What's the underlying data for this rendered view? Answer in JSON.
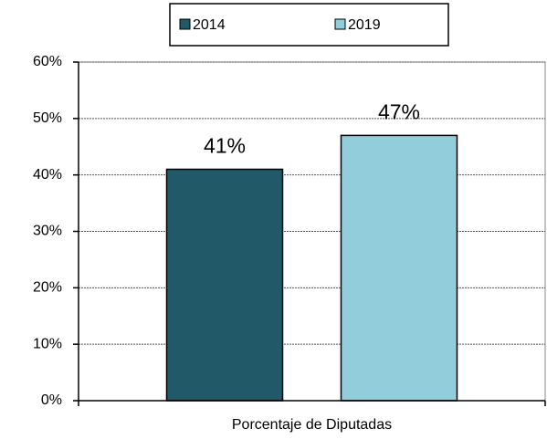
{
  "chart_data": {
    "type": "bar",
    "categories": [
      "Porcentaje de Diputadas"
    ],
    "series": [
      {
        "name": "2014",
        "color": "#215968",
        "values": [
          41
        ],
        "value_labels": [
          "41%"
        ]
      },
      {
        "name": "2019",
        "color": "#92cddc",
        "values": [
          47
        ],
        "value_labels": [
          "47%"
        ]
      }
    ],
    "ylim": [
      0,
      60
    ],
    "yticks": [
      {
        "value": 0,
        "label": "0%"
      },
      {
        "value": 10,
        "label": "10%"
      },
      {
        "value": 20,
        "label": "20%"
      },
      {
        "value": 30,
        "label": "30%"
      },
      {
        "value": 40,
        "label": "40%"
      },
      {
        "value": 50,
        "label": "50%"
      },
      {
        "value": 60,
        "label": "60%"
      }
    ],
    "grid": true,
    "legend": "top"
  }
}
